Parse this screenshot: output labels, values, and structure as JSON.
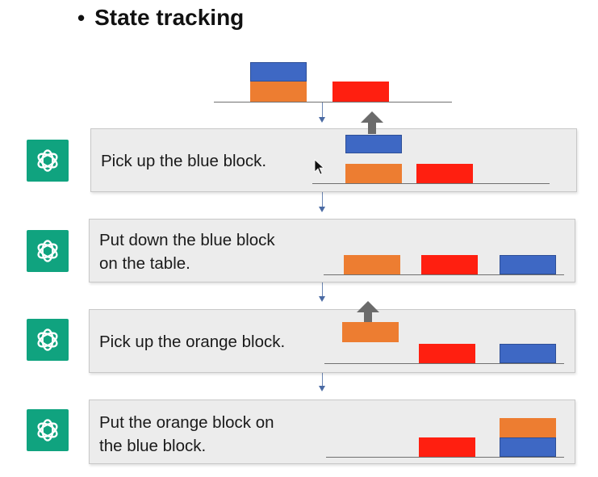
{
  "title": "State tracking",
  "colors": {
    "blue": "#3e68c4",
    "orange": "#ed7d31",
    "red": "#ff1f10",
    "logo": "#10a37f",
    "panel": "#ececec",
    "arrow": "#6b6b6b"
  },
  "icons": {
    "logo": "openai-logo-icon",
    "lift": "up-arrow-icon",
    "pointer": "mouse-cursor-icon"
  },
  "steps": [
    {
      "text": "Pick up the blue block."
    },
    {
      "text": "Put down the blue block\non the table."
    },
    {
      "text": "Pick up the orange block."
    },
    {
      "text": "Put the orange block on\nthe blue block."
    }
  ]
}
